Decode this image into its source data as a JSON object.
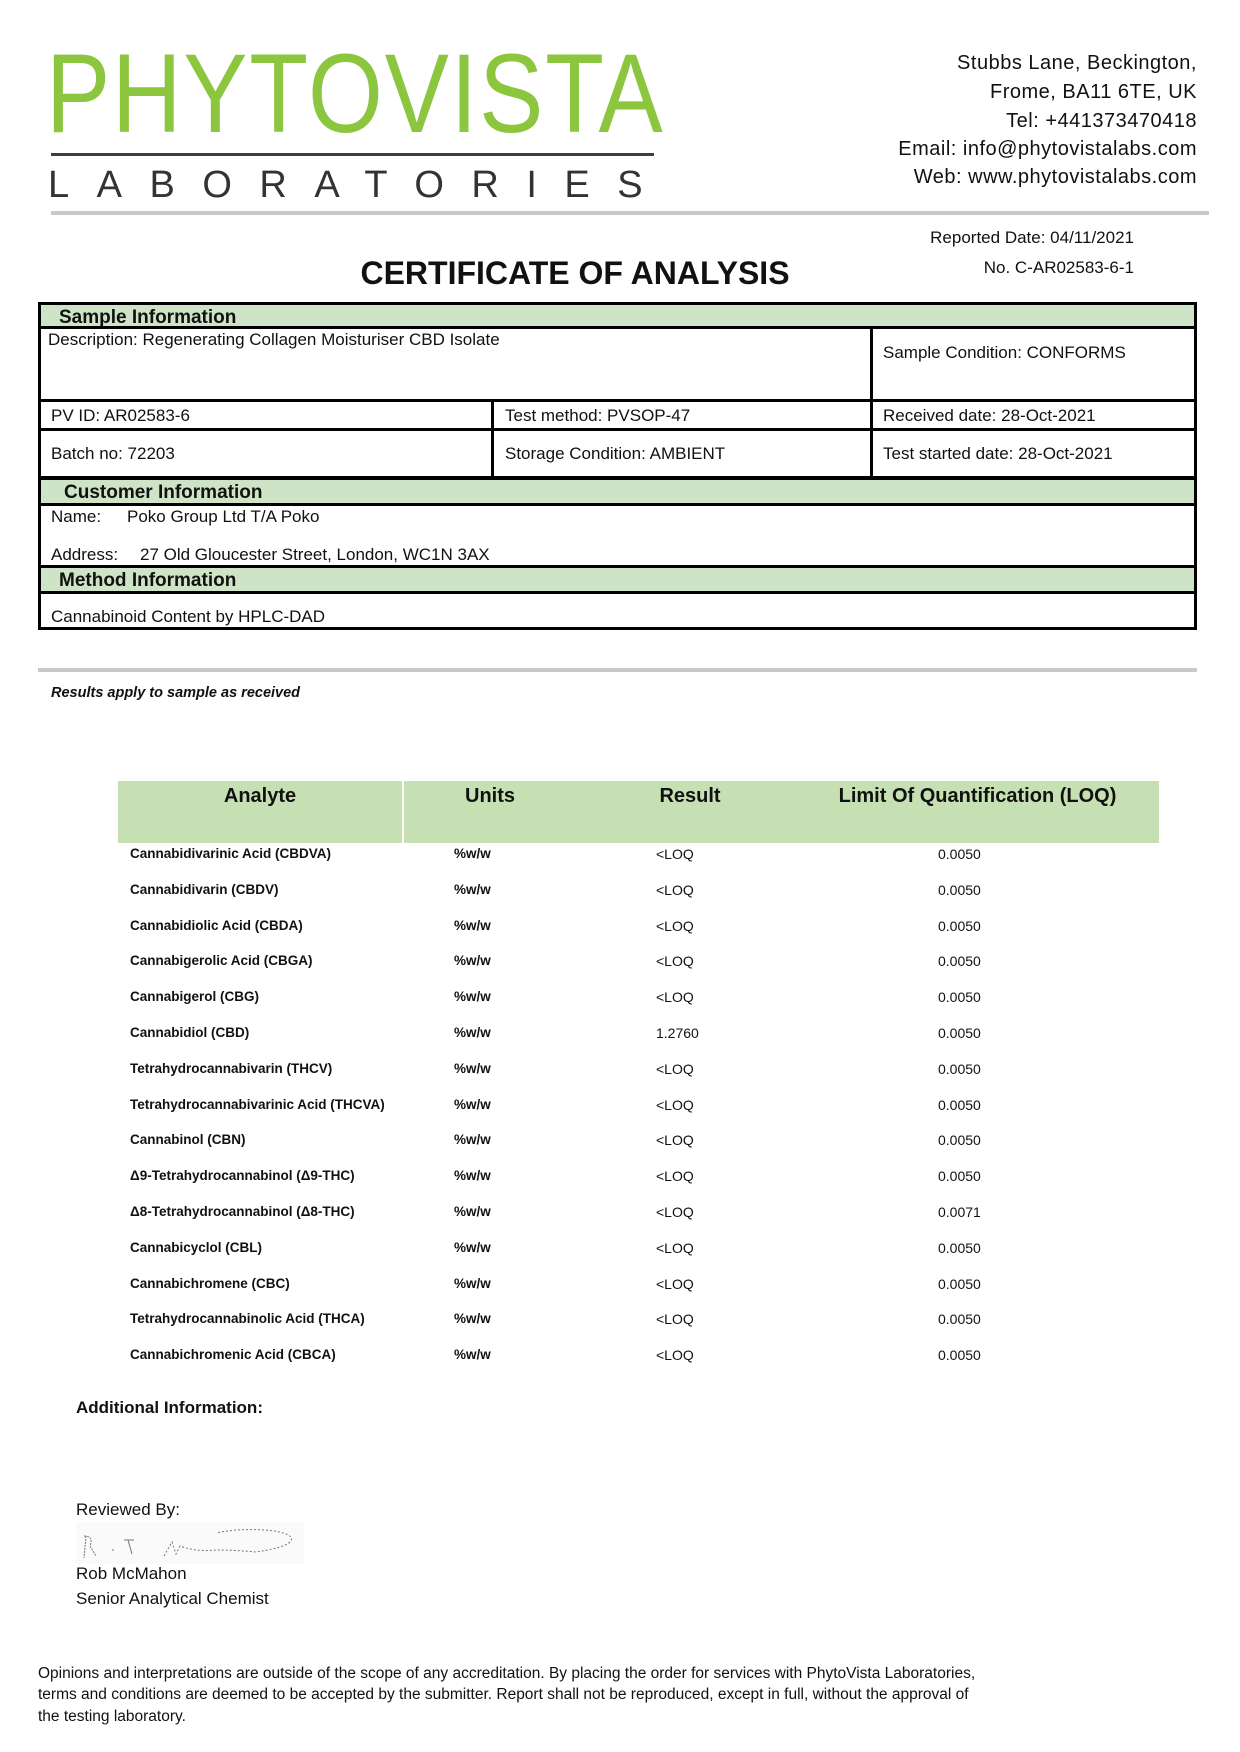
{
  "logo": {
    "name": "PHYTOVISTA",
    "subtitle": "LABORATORIES",
    "brand_color": "#8cc63f"
  },
  "address": {
    "lines": [
      "Stubbs Lane, Beckington,",
      "Frome, BA11 6TE, UK",
      "Tel: +441373470418",
      "Email: info@phytovistalabs.com",
      "Web: www.phytovistalabs.com"
    ]
  },
  "report": {
    "reported_date": "Reported Date: 04/11/2021",
    "number": "No. C-AR02583-6-1",
    "title": "CERTIFICATE OF ANALYSIS"
  },
  "sample": {
    "header": "Sample Information",
    "description": "Description: Regenerating Collagen Moisturiser CBD Isolate",
    "condition": "Sample Condition: CONFORMS",
    "pv_id": "PV ID: AR02583-6",
    "test_method": "Test method: PVSOP-47",
    "received_date": "Received date: 28-Oct-2021",
    "batch_no": "Batch no: 72203",
    "storage": "Storage Condition: AMBIENT",
    "test_started": "Test started date: 28-Oct-2021"
  },
  "customer": {
    "header": "Customer Information",
    "name_label": "Name:",
    "name": "Poko Group Ltd T/A Poko",
    "address_label": "Address:",
    "address": "27 Old Gloucester Street, London, WC1N 3AX"
  },
  "method": {
    "header": "Method Information",
    "text": "Cannabinoid Content by HPLC-DAD"
  },
  "results_note": "Results apply to sample as received",
  "table": {
    "header_color": "#c6e0b4",
    "columns": [
      "Analyte",
      "Units",
      "Result",
      "Limit Of Quantification (LOQ)"
    ],
    "rows": [
      [
        "Cannabidivarinic Acid (CBDVA)",
        "%w/w",
        "<LOQ",
        "0.0050"
      ],
      [
        "Cannabidivarin (CBDV)",
        "%w/w",
        "<LOQ",
        "0.0050"
      ],
      [
        "Cannabidiolic Acid (CBDA)",
        "%w/w",
        "<LOQ",
        "0.0050"
      ],
      [
        "Cannabigerolic Acid (CBGA)",
        "%w/w",
        "<LOQ",
        "0.0050"
      ],
      [
        "Cannabigerol (CBG)",
        "%w/w",
        "<LOQ",
        "0.0050"
      ],
      [
        "Cannabidiol (CBD)",
        "%w/w",
        "1.2760",
        "0.0050"
      ],
      [
        "Tetrahydrocannabivarin (THCV)",
        "%w/w",
        "<LOQ",
        "0.0050"
      ],
      [
        "Tetrahydrocannabivarinic Acid (THCVA)",
        "%w/w",
        "<LOQ",
        "0.0050"
      ],
      [
        "Cannabinol (CBN)",
        "%w/w",
        "<LOQ",
        "0.0050"
      ],
      [
        "Δ9-Tetrahydrocannabinol (Δ9-THC)",
        "%w/w",
        "<LOQ",
        "0.0050"
      ],
      [
        "Δ8-Tetrahydrocannabinol (Δ8-THC)",
        "%w/w",
        "<LOQ",
        "0.0071"
      ],
      [
        "Cannabicyclol (CBL)",
        "%w/w",
        "<LOQ",
        "0.0050"
      ],
      [
        "Cannabichromene (CBC)",
        "%w/w",
        "<LOQ",
        "0.0050"
      ],
      [
        "Tetrahydrocannabinolic Acid (THCA)",
        "%w/w",
        "<LOQ",
        "0.0050"
      ],
      [
        "Cannabichromenic Acid (CBCA)",
        "%w/w",
        "<LOQ",
        "0.0050"
      ]
    ]
  },
  "additional_info": "Additional Information:",
  "review": {
    "label": "Reviewed By:",
    "name": "Rob McMahon",
    "role": "Senior Analytical Chemist"
  },
  "footer": [
    "Opinions and interpretations are outside of the scope of any accreditation. By placing the order for services with PhytoVista Laboratories,",
    "terms and conditions are deemed to be accepted by the submitter. Report shall not be reproduced, except in full, without the approval of",
    "the testing laboratory."
  ]
}
